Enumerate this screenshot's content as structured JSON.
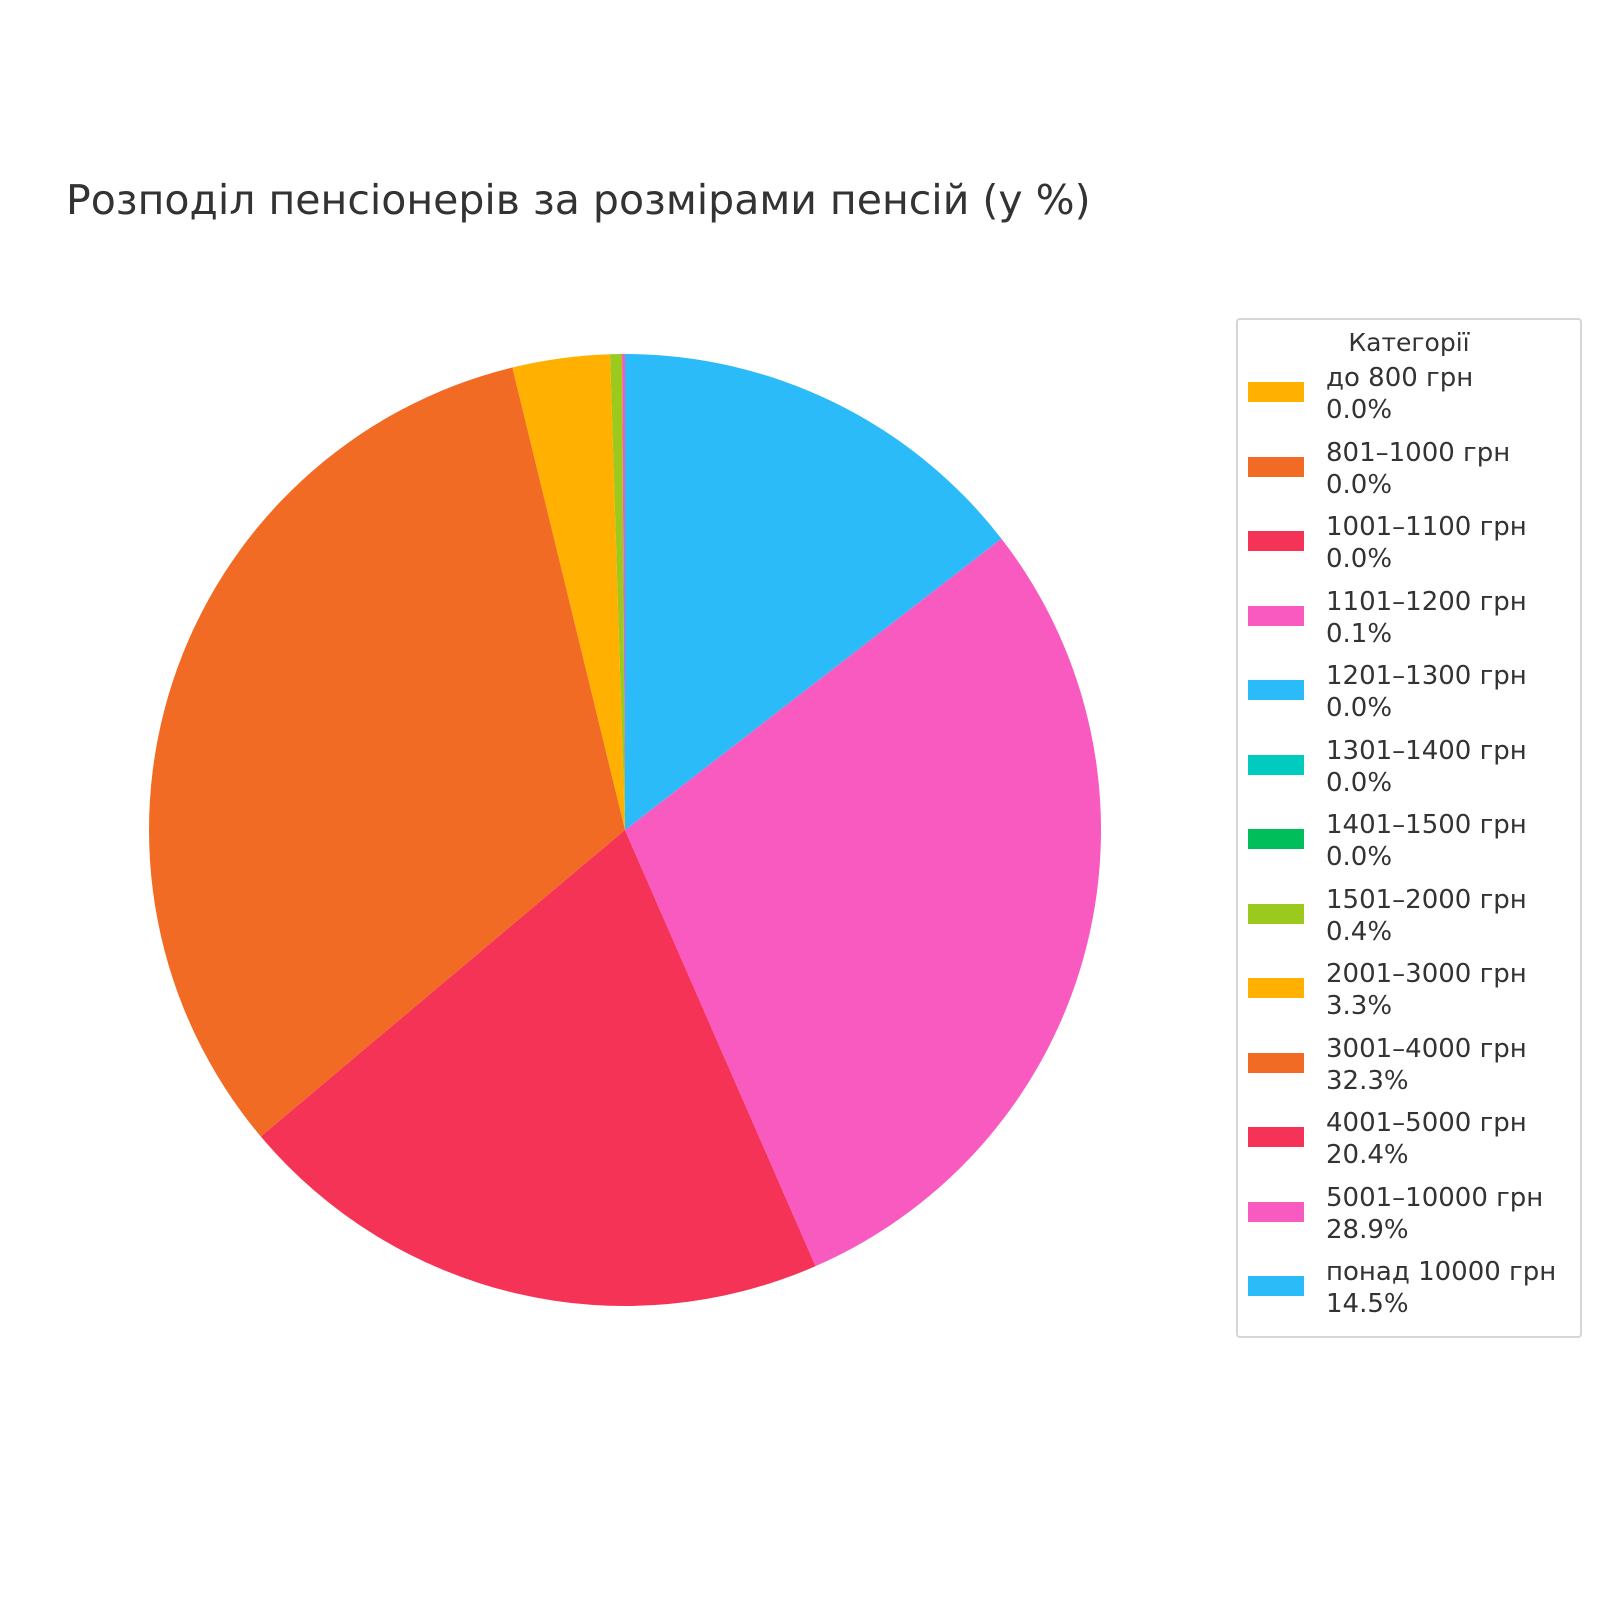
{
  "chart_data": {
    "type": "pie",
    "title": "Розподіл пенсіонерів за розмірами пенсій (у %)",
    "legend_title": "Категорії",
    "legend_position": "right",
    "start_angle": 90,
    "direction": "counterclockwise",
    "slices": [
      {
        "label": "до 800 грн",
        "value": 0.0,
        "value_label": "0.0%",
        "color": "#FFB000"
      },
      {
        "label": "801–1000 грн",
        "value": 0.0,
        "value_label": "0.0%",
        "color": "#F26B24"
      },
      {
        "label": "1001–1100 грн",
        "value": 0.0,
        "value_label": "0.0%",
        "color": "#F53357"
      },
      {
        "label": "1101–1200 грн",
        "value": 0.1,
        "value_label": "0.1%",
        "color": "#F95AC0"
      },
      {
        "label": "1201–1300 грн",
        "value": 0.0,
        "value_label": "0.0%",
        "color": "#2BBBF9"
      },
      {
        "label": "1301–1400 грн",
        "value": 0.0,
        "value_label": "0.0%",
        "color": "#00CBBE"
      },
      {
        "label": "1401–1500 грн",
        "value": 0.0,
        "value_label": "0.0%",
        "color": "#00BF5A"
      },
      {
        "label": "1501–2000 грн",
        "value": 0.4,
        "value_label": "0.4%",
        "color": "#9BC91E"
      },
      {
        "label": "2001–3000 грн",
        "value": 3.3,
        "value_label": "3.3%",
        "color": "#FFB000"
      },
      {
        "label": "3001–4000 грн",
        "value": 32.3,
        "value_label": "32.3%",
        "color": "#F26B24"
      },
      {
        "label": "4001–5000 грн",
        "value": 20.4,
        "value_label": "20.4%",
        "color": "#F53357"
      },
      {
        "label": "5001–10000 грн",
        "value": 28.9,
        "value_label": "28.9%",
        "color": "#F95AC0"
      },
      {
        "label": "понад 10000 грн",
        "value": 14.5,
        "value_label": "14.5%",
        "color": "#2BBBF9"
      }
    ]
  }
}
